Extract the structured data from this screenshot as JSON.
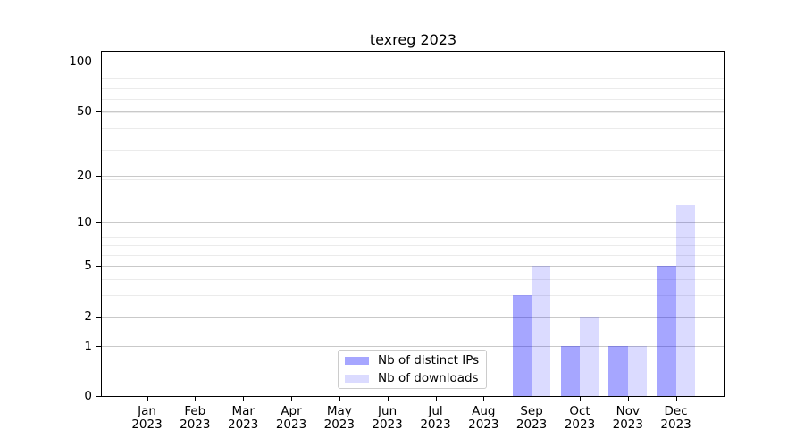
{
  "title": "texreg 2023",
  "colors": {
    "bar_distinct_ips": "rgba(0,0,255,0.35)",
    "bar_downloads": "rgba(0,0,255,0.14)",
    "grid_major": "#c9c9c9",
    "grid_minor": "#ebebeb",
    "axis": "#000000",
    "legend_border": "#cccccc"
  },
  "chart_data": {
    "type": "bar",
    "title": "texreg 2023",
    "categories": [
      "Jan",
      "Feb",
      "Mar",
      "Apr",
      "May",
      "Jun",
      "Jul",
      "Aug",
      "Sep",
      "Oct",
      "Nov",
      "Dec"
    ],
    "category_year": "2023",
    "series": [
      {
        "name": "Nb of distinct IPs",
        "color": "rgba(0,0,255,0.35)",
        "values": [
          0,
          0,
          0,
          0,
          0,
          0,
          0,
          0,
          3,
          1,
          1,
          5
        ]
      },
      {
        "name": "Nb of downloads",
        "color": "rgba(0,0,255,0.14)",
        "values": [
          0,
          0,
          0,
          0,
          0,
          0,
          0,
          0,
          5,
          2,
          1,
          13
        ]
      }
    ],
    "xlabel": "",
    "ylabel": "",
    "yscale": "log1p",
    "yticks": [
      0,
      1,
      2,
      5,
      10,
      20,
      50,
      100
    ],
    "ylim": [
      0,
      116
    ],
    "grid": "horizontal major + log minor",
    "legend_position": "inside bottom-center"
  }
}
